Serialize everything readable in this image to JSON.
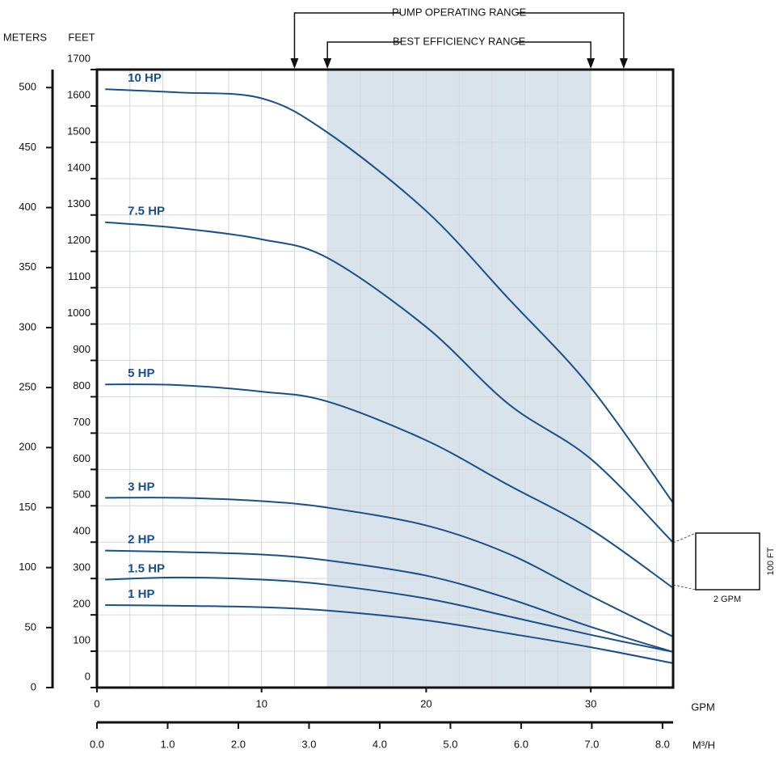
{
  "chart_data": {
    "type": "line",
    "xlabel": "GPM",
    "x2label": "M³/H",
    "ylabel": "FEET",
    "y2label": "METERS",
    "x": [
      0.5,
      5,
      10,
      14,
      20,
      25,
      30,
      35
    ],
    "series": [
      {
        "name": "10 HP",
        "color": "#1b4f87",
        "values": [
          1646,
          1637,
          1621,
          1527,
          1311,
          1070,
          825,
          508
        ]
      },
      {
        "name": "7.5 HP",
        "color": "#1b4f87",
        "values": [
          1280,
          1264,
          1233,
          1182,
          992,
          780,
          629,
          399
        ]
      },
      {
        "name": "5 HP",
        "color": "#1b4f87",
        "values": [
          834,
          832,
          814,
          787,
          680,
          557,
          435,
          274
        ]
      },
      {
        "name": "3 HP",
        "color": "#1b4f87",
        "values": [
          522,
          522,
          513,
          495,
          446,
          368,
          252,
          140
        ]
      },
      {
        "name": "2 HP",
        "color": "#1b4f87",
        "values": [
          377,
          373,
          366,
          350,
          308,
          245,
          167,
          98
        ]
      },
      {
        "name": "1.5 HP",
        "color": "#1b4f87",
        "values": [
          297,
          303,
          297,
          283,
          245,
          196,
          145,
          98
        ]
      },
      {
        "name": "1 HP",
        "color": "#1b4f87",
        "values": [
          227,
          225,
          221,
          212,
          185,
          149,
          111,
          67
        ]
      }
    ],
    "xlim": [
      0,
      35
    ],
    "xticks": [
      0,
      10,
      20,
      30
    ],
    "xgrid": [
      2,
      4,
      6,
      8,
      10,
      12,
      14,
      16,
      18,
      20,
      22,
      24,
      26,
      28,
      30,
      32,
      34
    ],
    "x2lim": [
      0,
      8.15
    ],
    "x2ticks": [
      {
        "value": 0,
        "label": "0.0"
      },
      {
        "value": 1,
        "label": "1.0"
      },
      {
        "value": 2,
        "label": "2.0"
      },
      {
        "value": 3,
        "label": "3.0"
      },
      {
        "value": 4,
        "label": "4.0"
      },
      {
        "value": 5,
        "label": "5.0"
      },
      {
        "value": 6,
        "label": "6.0"
      },
      {
        "value": 7,
        "label": "7.0"
      },
      {
        "value": 8,
        "label": "8.0"
      }
    ],
    "ylim": [
      0,
      1700
    ],
    "yticks": [
      0,
      100,
      200,
      300,
      400,
      500,
      600,
      700,
      800,
      900,
      1000,
      1100,
      1200,
      1300,
      1400,
      1500,
      1600,
      1700
    ],
    "y2lim": [
      0,
      515
    ],
    "y2ticks": [
      0,
      50,
      100,
      150,
      200,
      250,
      300,
      350,
      400,
      450,
      500
    ],
    "grid": true,
    "annotations": [
      {
        "text": "PUMP OPERATING RANGE",
        "range": [
          12,
          32
        ]
      },
      {
        "text": "BEST EFFICIENCY RANGE",
        "range": [
          14,
          30
        ],
        "shade": "#d9e3ec"
      }
    ],
    "scale_box": {
      "width_label": "2 GPM",
      "height_label": "100 FT"
    }
  }
}
